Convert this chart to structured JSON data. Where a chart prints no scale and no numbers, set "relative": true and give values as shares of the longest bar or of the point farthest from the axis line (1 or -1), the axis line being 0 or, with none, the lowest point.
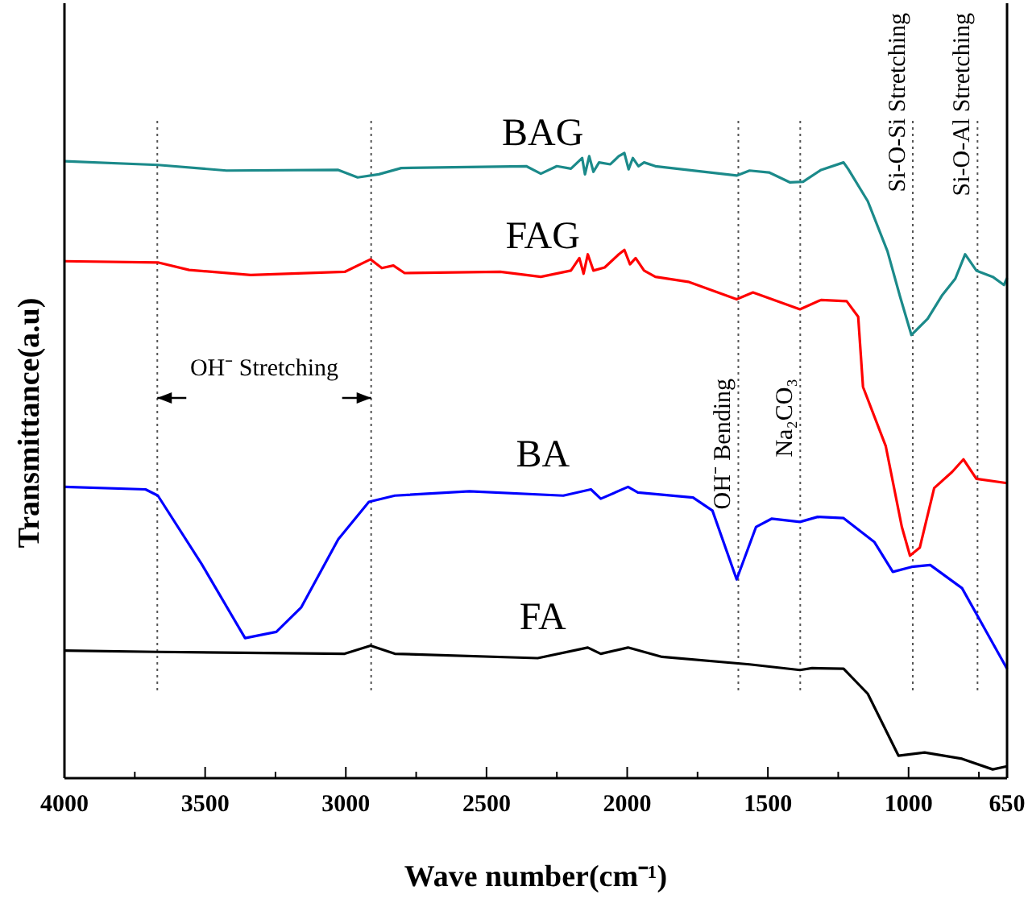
{
  "chart_data": {
    "type": "line",
    "xlabel": "Wave number(cm⁻¹)",
    "ylabel": "Transmittance(a.u)",
    "relative": true,
    "xlim": [
      4000,
      650
    ],
    "xticks": [
      4000,
      {
        "value": 3750,
        "label": null
      },
      3500,
      {
        "value": 3250,
        "label": null
      },
      3000,
      {
        "value": 2750,
        "label": null
      },
      2500,
      {
        "value": 2250,
        "label": null
      },
      2000,
      {
        "value": 1750,
        "label": null
      },
      1500,
      {
        "value": 1250,
        "label": null
      },
      1000,
      {
        "value": 750,
        "label": null
      },
      650
    ],
    "series": [
      {
        "name": "BAG",
        "color": "#1b8a8a",
        "x": [
          4000,
          3668,
          3424,
          3027,
          2958,
          2883,
          2803,
          2359,
          2307,
          2250,
          2200,
          2160,
          2150,
          2135,
          2120,
          2100,
          2060,
          2030,
          2010,
          1995,
          1980,
          1960,
          1940,
          1900,
          1611,
          1565,
          1496,
          1421,
          1375,
          1311,
          1231,
          1214,
          1145,
          1075,
          1030,
          990,
          932,
          880,
          834,
          799,
          759,
          701,
          661,
          650
        ],
        "values": [
          0.987,
          0.981,
          0.972,
          0.973,
          0.961,
          0.966,
          0.976,
          0.979,
          0.967,
          0.979,
          0.975,
          0.992,
          0.966,
          0.995,
          0.97,
          0.985,
          0.982,
          0.995,
          1.0,
          0.974,
          0.992,
          0.979,
          0.985,
          0.979,
          0.964,
          0.972,
          0.969,
          0.953,
          0.954,
          0.973,
          0.985,
          0.974,
          0.923,
          0.843,
          0.77,
          0.709,
          0.735,
          0.773,
          0.799,
          0.838,
          0.812,
          0.802,
          0.789,
          0.8
        ]
      },
      {
        "name": "FAG",
        "color": "#ff0000",
        "x": [
          4000,
          3668,
          3557,
          3338,
          3004,
          2912,
          2872,
          2831,
          2791,
          2451,
          2307,
          2200,
          2170,
          2155,
          2140,
          2120,
          2080,
          2030,
          2010,
          1990,
          1970,
          1940,
          1900,
          1783,
          1611,
          1553,
          1386,
          1311,
          1220,
          1179,
          1162,
          1081,
          1024,
          995,
          960,
          909,
          845,
          805,
          759,
          650
        ],
        "values": [
          0.827,
          0.825,
          0.813,
          0.805,
          0.81,
          0.83,
          0.816,
          0.82,
          0.808,
          0.81,
          0.802,
          0.812,
          0.832,
          0.807,
          0.838,
          0.812,
          0.817,
          0.838,
          0.845,
          0.822,
          0.832,
          0.812,
          0.802,
          0.794,
          0.766,
          0.777,
          0.75,
          0.765,
          0.763,
          0.738,
          0.626,
          0.531,
          0.402,
          0.356,
          0.369,
          0.464,
          0.49,
          0.51,
          0.479,
          0.472
        ]
      },
      {
        "name": "BA",
        "color": "#0000ff",
        "x": [
          4000,
          3712,
          3668,
          3513,
          3358,
          3247,
          3159,
          3027,
          2918,
          2826,
          2561,
          2227,
          2129,
          2094,
          1997,
          1962,
          1766,
          1697,
          1611,
          1542,
          1487,
          1386,
          1323,
          1231,
          1122,
          1056,
          989,
          923,
          810,
          650
        ],
        "values": [
          0.466,
          0.462,
          0.452,
          0.343,
          0.224,
          0.234,
          0.273,
          0.382,
          0.442,
          0.452,
          0.459,
          0.452,
          0.462,
          0.447,
          0.466,
          0.457,
          0.449,
          0.428,
          0.318,
          0.402,
          0.415,
          0.41,
          0.418,
          0.416,
          0.378,
          0.33,
          0.338,
          0.341,
          0.304,
          0.175
        ]
      },
      {
        "name": "FA",
        "color": "#000000",
        "x": [
          4000,
          3668,
          3004,
          2912,
          2826,
          2318,
          2140,
          2094,
          1997,
          1876,
          1565,
          1386,
          1343,
          1231,
          1145,
          1036,
          943,
          810,
          701,
          650
        ],
        "values": [
          0.204,
          0.202,
          0.199,
          0.212,
          0.199,
          0.192,
          0.209,
          0.199,
          0.209,
          0.194,
          0.182,
          0.173,
          0.176,
          0.175,
          0.135,
          0.036,
          0.041,
          0.031,
          0.014,
          0.019
        ]
      }
    ],
    "ref_lines": [
      {
        "axis": "x",
        "value": 3670,
        "line_style": "dotted"
      },
      {
        "axis": "x",
        "value": 2910,
        "line_style": "dotted"
      },
      {
        "axis": "x",
        "value": 1605,
        "label": "OH⁻ Bending",
        "line_style": "dotted"
      },
      {
        "axis": "x",
        "value": 1385,
        "label": "Na₂CO₃",
        "line_style": "dotted"
      },
      {
        "axis": "x",
        "value": 985,
        "label": "Si-O-Si Stretching",
        "line_style": "dotted"
      },
      {
        "axis": "x",
        "value": 755,
        "label": "Si-O-Al Stretching",
        "line_style": "dotted"
      }
    ],
    "annotations": [
      "OH⁻ Stretching"
    ],
    "line_style": "solid"
  }
}
